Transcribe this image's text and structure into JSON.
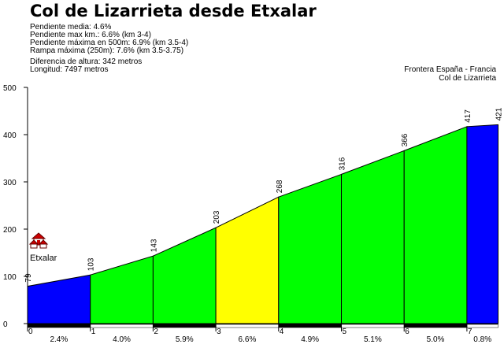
{
  "title": "Col de Lizarrieta desde Etxalar",
  "stats": [
    "Pendiente media: 4.6%",
    "Pendiente max km.: 6.6% (km 3-4)",
    "Pendiente máxima en 500m: 6.9% (km 3.5-4)",
    "Rampa máxima (250m): 7.6% (km 3.5-3.75)"
  ],
  "stats2": [
    "Diferencia de altura: 342 metros",
    "Longitud: 7497 metros"
  ],
  "destination": [
    "Frontera España - Francia",
    "Col de Lizarrieta"
  ],
  "start_label": "Etxalar",
  "colors": {
    "blue": "#0000ff",
    "green": "#00ff00",
    "yellow": "#ffff00",
    "icon_red": "#cc0000"
  },
  "chart_data": {
    "type": "area",
    "x": [
      0,
      1,
      2,
      3,
      4,
      5,
      6,
      7,
      7.497
    ],
    "altitudes": [
      79,
      103,
      143,
      203,
      268,
      316,
      366,
      417,
      421
    ],
    "altitude_labels": [
      "79",
      "103",
      "143",
      "203",
      "268",
      "316",
      "366",
      "417",
      "421"
    ],
    "gradients": [
      "2.4%",
      "4.0%",
      "5.9%",
      "6.6%",
      "4.9%",
      "5.1%",
      "5.0%",
      "0.8%"
    ],
    "segment_colors": [
      "blue",
      "green",
      "green",
      "yellow",
      "green",
      "green",
      "green",
      "blue"
    ],
    "xticks": [
      "0",
      "1",
      "2",
      "3",
      "4",
      "5",
      "6",
      "7"
    ],
    "yticks": [
      "0",
      "100",
      "200",
      "300",
      "400",
      "500"
    ],
    "ylim": [
      0,
      500
    ],
    "xlim": [
      0,
      7.497
    ],
    "grid": false
  }
}
